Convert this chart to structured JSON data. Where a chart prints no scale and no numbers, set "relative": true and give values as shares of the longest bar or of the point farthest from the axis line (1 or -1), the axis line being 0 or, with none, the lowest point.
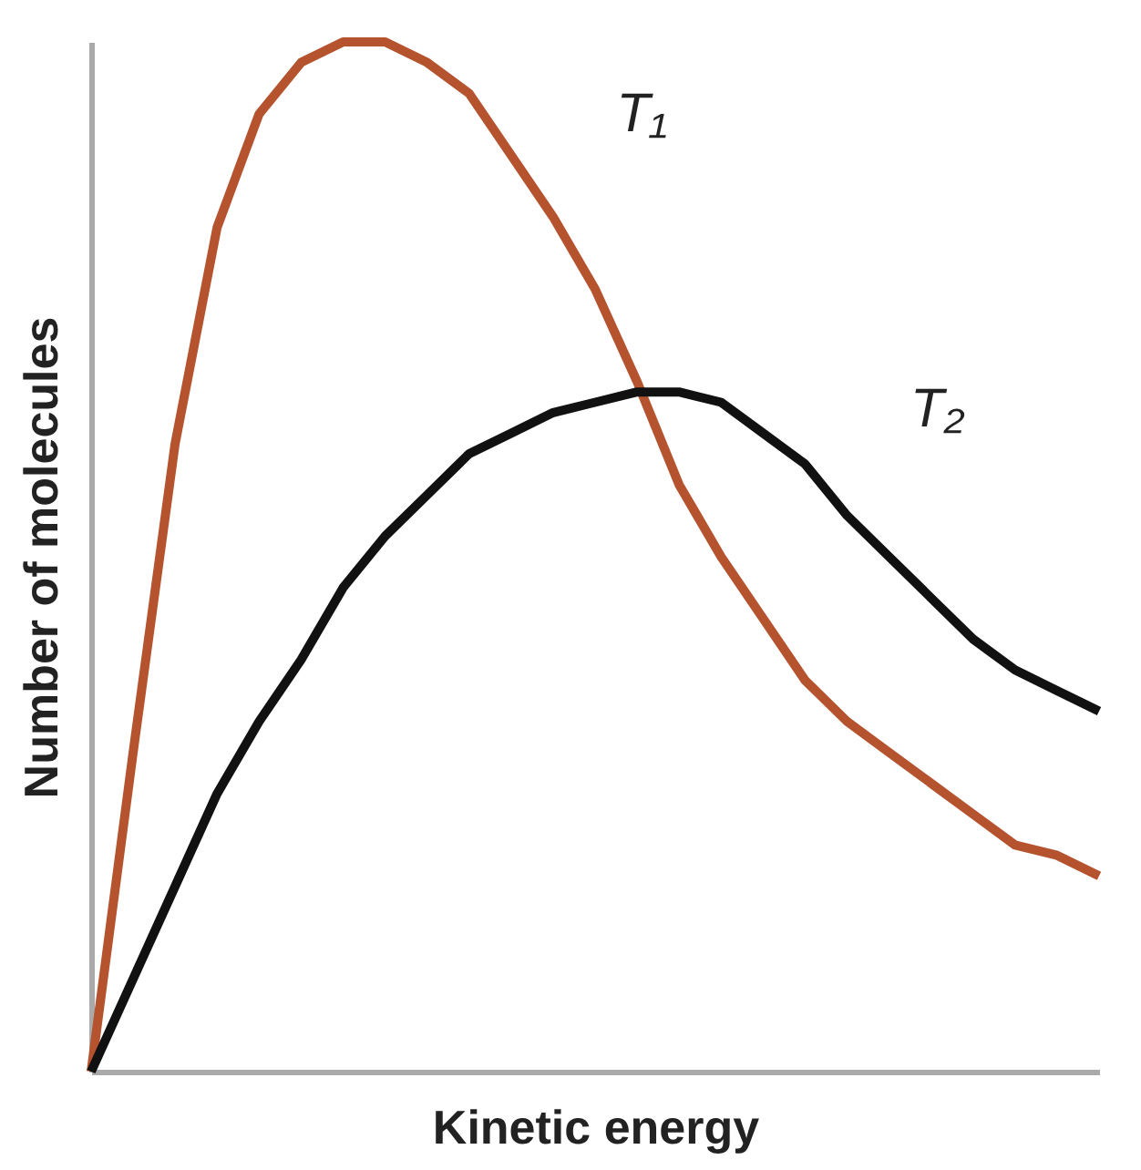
{
  "chart_data": {
    "type": "line",
    "relative": true,
    "xlabel": "Kinetic energy",
    "ylabel": "Number of molecules",
    "categories": [
      null,
      null,
      null,
      null,
      null,
      null,
      null,
      null,
      null,
      null,
      null,
      null,
      null,
      null,
      null,
      null,
      null,
      null,
      null,
      null,
      null,
      null,
      null,
      null,
      null
    ],
    "marker": "none",
    "line_style": "solid",
    "series": [
      {
        "name": "T₁",
        "color": "#b5532f",
        "values": [
          0,
          0.31,
          0.61,
          0.82,
          0.93,
          0.98,
          1,
          1,
          0.98,
          0.95,
          0.89,
          0.83,
          0.76,
          0.67,
          0.57,
          0.5,
          0.44,
          0.38,
          0.34,
          0.31,
          0.28,
          0.25,
          0.22,
          0.21,
          0.19
        ]
      },
      {
        "name": "T₂",
        "color": "#111111",
        "values": [
          0,
          0.09,
          0.18,
          0.27,
          0.34,
          0.4,
          0.47,
          0.52,
          0.56,
          0.6,
          0.62,
          0.64,
          0.65,
          0.66,
          0.66,
          0.65,
          0.62,
          0.59,
          0.54,
          0.5,
          0.46,
          0.42,
          0.39,
          0.37,
          0.35
        ]
      }
    ]
  }
}
